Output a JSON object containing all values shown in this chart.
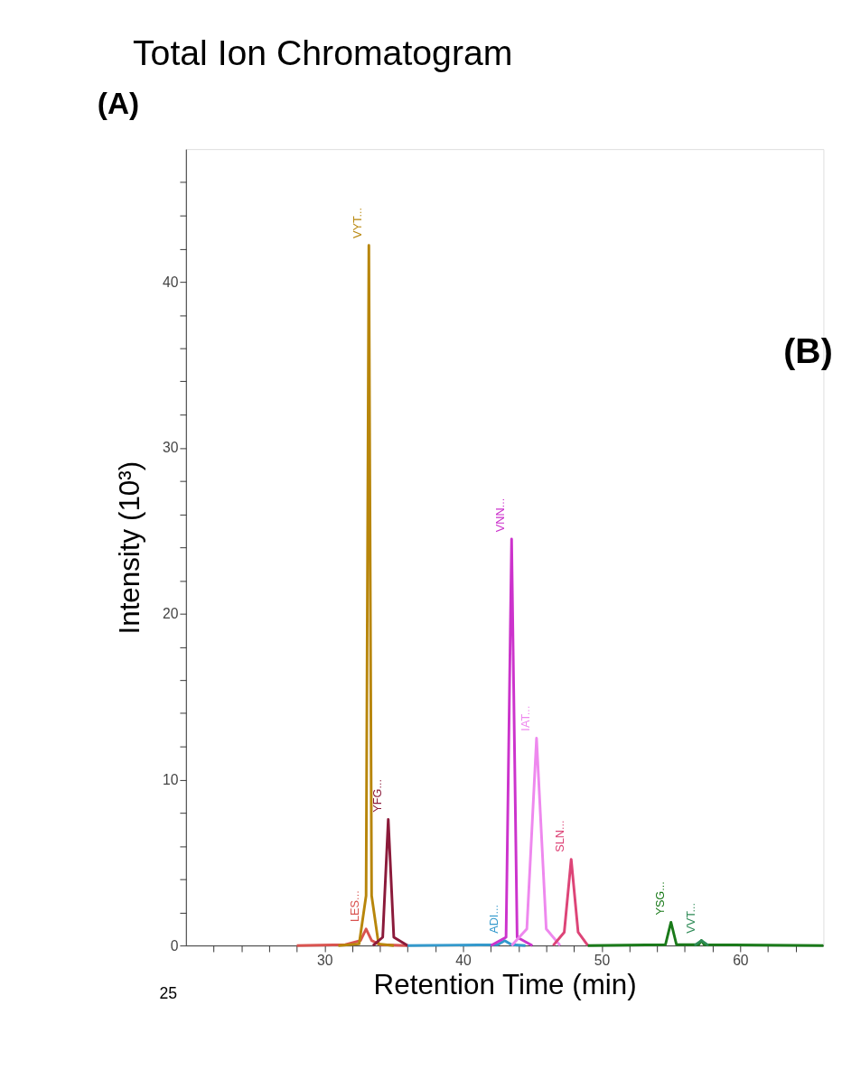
{
  "chart_data": {
    "type": "line",
    "title": "Total Ion Chromatogram",
    "xlabel": "Retention Time (min)",
    "ylabel": "Intensity (10³)",
    "xlim": [
      20,
      66
    ],
    "ylim": [
      0,
      48
    ],
    "xticks": [
      {
        "value": 22,
        "label": null
      },
      {
        "value": 24,
        "label": null
      },
      {
        "value": 26,
        "label": null
      },
      {
        "value": 28,
        "label": null
      },
      30,
      {
        "value": 32,
        "label": null
      },
      {
        "value": 34,
        "label": null
      },
      {
        "value": 36,
        "label": null
      },
      {
        "value": 38,
        "label": null
      },
      40,
      {
        "value": 42,
        "label": null
      },
      {
        "value": 44,
        "label": null
      },
      {
        "value": 46,
        "label": null
      },
      {
        "value": 48,
        "label": null
      },
      50,
      {
        "value": 52,
        "label": null
      },
      {
        "value": 54,
        "label": null
      },
      {
        "value": 56,
        "label": null
      },
      {
        "value": 58,
        "label": null
      },
      60,
      {
        "value": 62,
        "label": null
      },
      {
        "value": 64,
        "label": null
      }
    ],
    "yticks": [
      0,
      {
        "value": 2,
        "label": null
      },
      {
        "value": 4,
        "label": null
      },
      {
        "value": 6,
        "label": null
      },
      {
        "value": 8,
        "label": null
      },
      10,
      {
        "value": 12,
        "label": null
      },
      {
        "value": 14,
        "label": null
      },
      {
        "value": 16,
        "label": null
      },
      {
        "value": 18,
        "label": null
      },
      20,
      {
        "value": 22,
        "label": null
      },
      {
        "value": 24,
        "label": null
      },
      {
        "value": 26,
        "label": null
      },
      {
        "value": 28,
        "label": null
      },
      30,
      {
        "value": 32,
        "label": null
      },
      {
        "value": 34,
        "label": null
      },
      {
        "value": 36,
        "label": null
      },
      {
        "value": 38,
        "label": null
      },
      40,
      {
        "value": 42,
        "label": null
      },
      {
        "value": 44,
        "label": null
      },
      {
        "value": 46,
        "label": null
      }
    ],
    "grid": false,
    "legend": false,
    "marker": "none",
    "line_style": "solid",
    "series": [
      {
        "name": "LES...",
        "color": "#d9534f",
        "x": [
          28,
          31.5,
          32.6,
          33.0,
          33.4,
          34.0,
          36
        ],
        "values": [
          0,
          0.05,
          0.3,
          1.0,
          0.3,
          0.05,
          0
        ]
      },
      {
        "name": "VYT...",
        "color": "#b8860b",
        "x": [
          31,
          32.5,
          33.0,
          33.2,
          33.4,
          33.9,
          35
        ],
        "values": [
          0,
          0.1,
          3.0,
          42.2,
          3.0,
          0.1,
          0
        ]
      },
      {
        "name": "YFG...",
        "color": "#8b1a3a",
        "x": [
          33.5,
          34.2,
          34.6,
          35.0,
          36
        ],
        "values": [
          0,
          0.5,
          7.6,
          0.5,
          0
        ]
      },
      {
        "name": "ADI...",
        "color": "#3399cc",
        "x": [
          36,
          42.5,
          43.0,
          43.5,
          44.5
        ],
        "values": [
          0,
          0.05,
          0.3,
          0.05,
          0
        ]
      },
      {
        "name": "VNN...",
        "color": "#cc33cc",
        "x": [
          42,
          43.1,
          43.5,
          43.9,
          45
        ],
        "values": [
          0,
          0.5,
          24.5,
          0.5,
          0
        ]
      },
      {
        "name": "IAT...",
        "color": "#ee88ee",
        "x": [
          43.5,
          44.6,
          45.3,
          46.0,
          47
        ],
        "values": [
          0,
          1.0,
          12.5,
          1.0,
          0
        ]
      },
      {
        "name": "SLN...",
        "color": "#dd4477",
        "x": [
          46.5,
          47.3,
          47.8,
          48.3,
          49
        ],
        "values": [
          0,
          0.8,
          5.2,
          0.8,
          0
        ]
      },
      {
        "name": "YSG...",
        "color": "#1a7a1a",
        "x": [
          49,
          54.6,
          55.0,
          55.4,
          57.0,
          57.2,
          57.4,
          66
        ],
        "values": [
          0,
          0.05,
          1.4,
          0.05,
          0.05,
          0.3,
          0.05,
          0
        ]
      },
      {
        "name": "VVT...",
        "color": "#2e8b57",
        "x": [
          56.7,
          57.2,
          57.7
        ],
        "values": [
          0,
          0.3,
          0
        ]
      }
    ],
    "annotations": [
      "(A)",
      "(B)",
      "25"
    ]
  }
}
